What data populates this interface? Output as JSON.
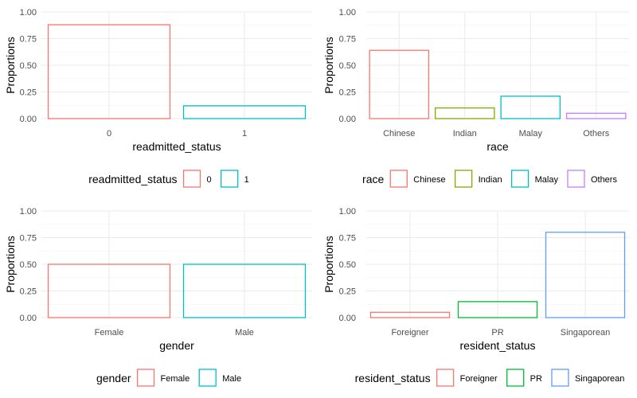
{
  "chart_data": [
    {
      "type": "bar",
      "xlabel": "readmitted_status",
      "ylabel": "Proportions",
      "ylim": [
        0,
        1
      ],
      "yticks": [
        "0.00",
        "0.25",
        "0.50",
        "0.75",
        "1.00"
      ],
      "grid": true,
      "fill": "none",
      "legend": {
        "title": "readmitted_status",
        "position": "bottom"
      },
      "categories": [
        "0",
        "1"
      ],
      "values": [
        0.88,
        0.12
      ],
      "colors": [
        "#F8766D",
        "#00BFC4"
      ]
    },
    {
      "type": "bar",
      "xlabel": "race",
      "ylabel": "Proportions",
      "ylim": [
        0,
        1
      ],
      "yticks": [
        "0.00",
        "0.25",
        "0.50",
        "0.75",
        "1.00"
      ],
      "grid": true,
      "fill": "none",
      "legend": {
        "title": "race",
        "position": "bottom"
      },
      "categories": [
        "Chinese",
        "Indian",
        "Malay",
        "Others"
      ],
      "values": [
        0.64,
        0.1,
        0.21,
        0.05
      ],
      "colors": [
        "#F8766D",
        "#7CAE00",
        "#00BFC4",
        "#C77CFF"
      ]
    },
    {
      "type": "bar",
      "xlabel": "gender",
      "ylabel": "Proportions",
      "ylim": [
        0,
        1
      ],
      "yticks": [
        "0.00",
        "0.25",
        "0.50",
        "0.75",
        "1.00"
      ],
      "grid": true,
      "fill": "none",
      "legend": {
        "title": "gender",
        "position": "bottom"
      },
      "categories": [
        "Female",
        "Male"
      ],
      "values": [
        0.5,
        0.5
      ],
      "colors": [
        "#F8766D",
        "#00BFC4"
      ]
    },
    {
      "type": "bar",
      "xlabel": "resident_status",
      "ylabel": "Proportions",
      "ylim": [
        0,
        1
      ],
      "yticks": [
        "0.00",
        "0.25",
        "0.50",
        "0.75",
        "1.00"
      ],
      "grid": true,
      "fill": "none",
      "legend": {
        "title": "resident_status",
        "position": "bottom"
      },
      "categories": [
        "Foreigner",
        "PR",
        "Singaporean"
      ],
      "values": [
        0.05,
        0.15,
        0.8
      ],
      "colors": [
        "#F8766D",
        "#00BA38",
        "#619CFF"
      ]
    }
  ]
}
